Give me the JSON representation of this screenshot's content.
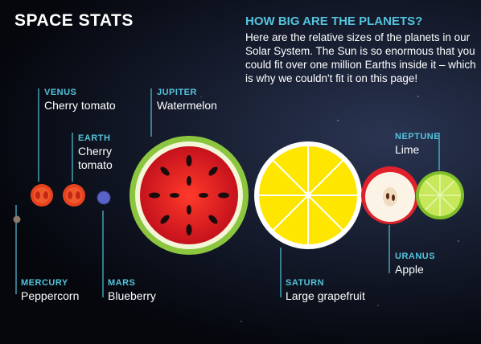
{
  "header": {
    "title": "SPACE STATS"
  },
  "intro": {
    "heading": "HOW BIG ARE THE PLANETS?",
    "text": "Here are the relative sizes of the planets in our Solar System. The Sun is so enormous that you could fit over one million Earths inside it – which is why we couldn't fit it on this page!"
  },
  "planets": [
    {
      "name": "MERCURY",
      "object": "Peppercorn"
    },
    {
      "name": "VENUS",
      "object": "Cherry tomato"
    },
    {
      "name": "EARTH",
      "object": "Cherry tomato"
    },
    {
      "name": "MARS",
      "object": "Blueberry"
    },
    {
      "name": "JUPITER",
      "object": "Watermelon"
    },
    {
      "name": "SATURN",
      "object": "Large grapefruit"
    },
    {
      "name": "URANUS",
      "object": "Apple"
    },
    {
      "name": "NEPTUNE",
      "object": "Lime"
    }
  ]
}
